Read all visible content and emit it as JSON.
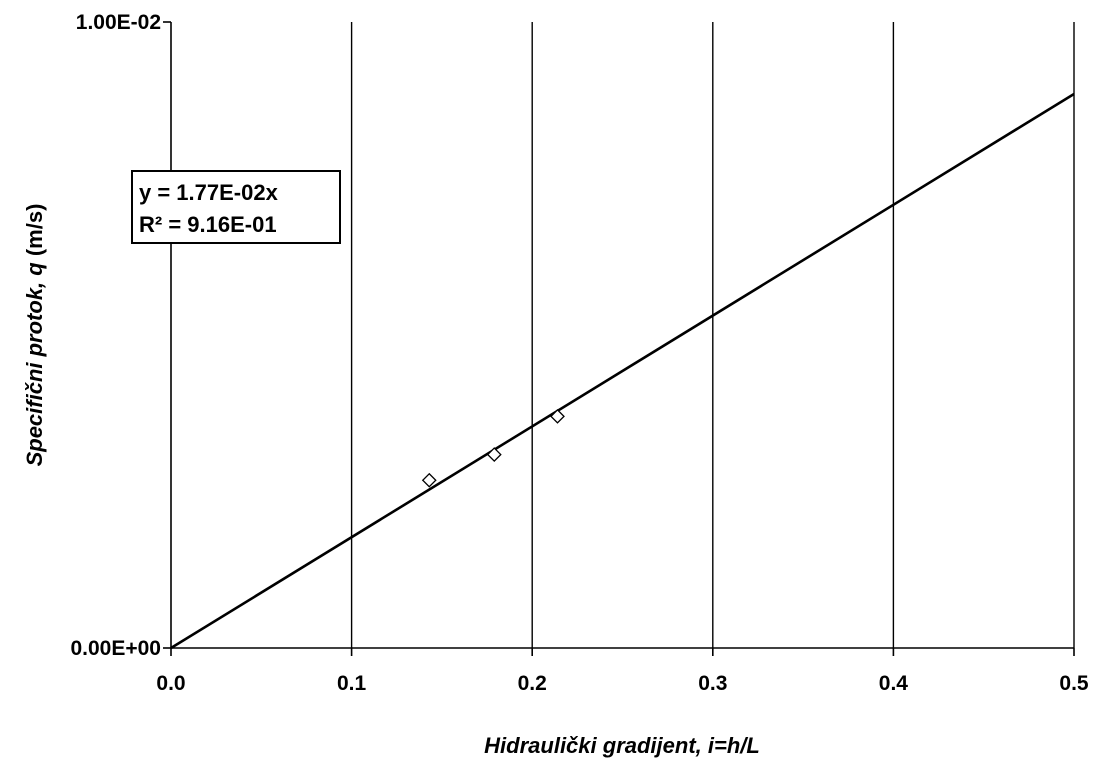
{
  "chart_data": {
    "type": "scatter",
    "title": "",
    "xlabel": "Hidraulički gradijent, i=h/L",
    "ylabel_parts": {
      "before": "Specifični protok, ",
      "italic_var": "q",
      "after": " (m/s)"
    },
    "xlim": [
      0,
      0.5
    ],
    "ylim": [
      0,
      0.01
    ],
    "x_ticks": [
      0.0,
      0.1,
      0.2,
      0.3,
      0.4,
      0.5
    ],
    "x_tick_labels": [
      "0.0",
      "0.1",
      "0.2",
      "0.3",
      "0.4",
      "0.5"
    ],
    "y_ticks": [
      0,
      0.01
    ],
    "y_tick_labels": [
      "0.00E+00",
      "1.00E-02"
    ],
    "grid": {
      "vertical": true,
      "horizontal": false
    },
    "series": [
      {
        "marker": "diamond-open",
        "points": [
          {
            "x": 0.143,
            "y": 0.00268
          },
          {
            "x": 0.179,
            "y": 0.00309
          },
          {
            "x": 0.214,
            "y": 0.0037
          }
        ]
      }
    ],
    "trendline": {
      "type": "linear-through-origin",
      "slope": 0.0177,
      "x_range": [
        0,
        0.5
      ]
    },
    "annotation": {
      "line1": "y = 1.77E-02x",
      "line2": "R² = 9.16E-01"
    }
  }
}
